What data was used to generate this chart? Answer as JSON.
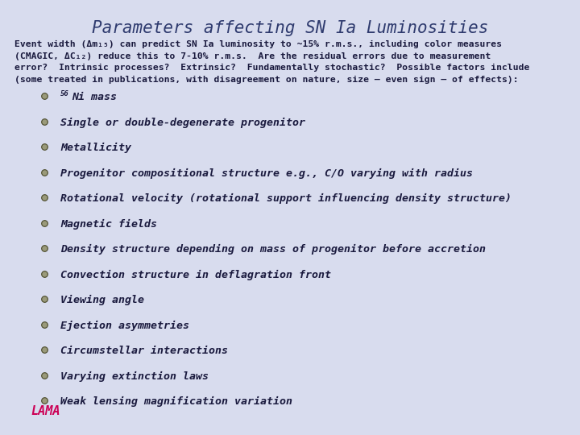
{
  "title": "Parameters affecting SN Ia Luminosities",
  "title_color": "#2e3a6e",
  "title_fontsize": 15,
  "bg_color": "#d8dcee",
  "intro_lines": [
    "Event width (Δm₁₅) can predict SN Ia luminosity to ~15% r.m.s., including color measures",
    "(CMAGIC, ΔC₁₂) reduce this to 7-10% r.m.s.  Are the residual errors due to measurement",
    "error?  Intrinsic processes?  Extrinsic?  Fundamentally stochastic?  Possible factors include",
    "(some treated in publications, with disagreement on nature, size – even sign – of effects):"
  ],
  "intro_fontsize": 8.2,
  "intro_color": "#1a1a3e",
  "bullet_fontsize": 9.5,
  "bullet_text_color": "#1a1a3e",
  "bullet_marker_color": "#7a7a5a",
  "bullet_marker_edge": "#4a4a2a",
  "bullets": [
    "Ni mass",
    "Single or double-degenerate progenitor",
    "Metallicity",
    "Progenitor compositional structure e.g., C/O varying with radius",
    "Rotational velocity (rotational support influencing density structure)",
    "Magnetic fields",
    "Density structure depending on mass of progenitor before accretion",
    "Convection structure in deflagration front",
    "Viewing angle",
    "Ejection asymmetries",
    "Circumstellar interactions",
    "Varying extinction laws",
    "Weak lensing magnification variation"
  ],
  "lama_color": "#cc0055",
  "lama_fontsize": 11
}
